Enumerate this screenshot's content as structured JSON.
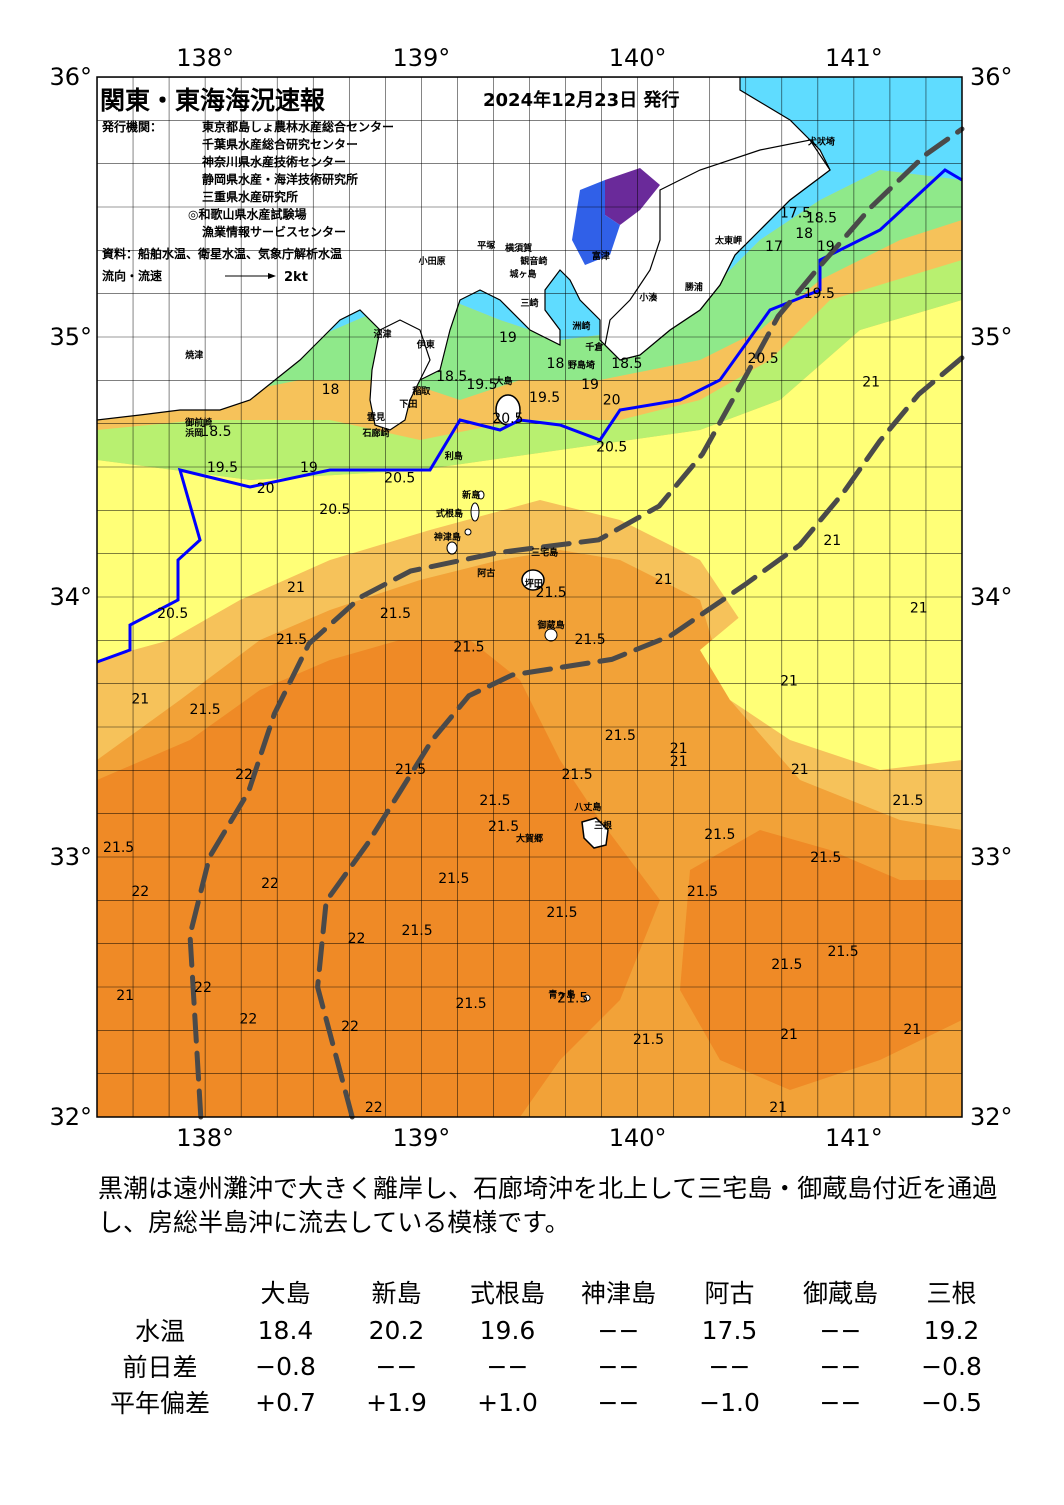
{
  "title": "関東・東海海況速報",
  "issue_date": "2024年12月23日 発行",
  "issuers_label": "発行機関：",
  "issuers": [
    "東京都島しょ農林水産総合センター",
    "千葉県水産総合研究センター",
    "神奈川県水産技術センター",
    "静岡県水産・海洋技術研究所",
    "三重県水産研究所",
    "◎和歌山県水産試験場",
    "漁業情報サービスセンター"
  ],
  "source": "資料：船舶水温、衛星水温、気象庁解析水温",
  "flow_label": "流向・流速",
  "flow_scale": "2kt",
  "axes": {
    "lon_ticks": [
      "138°",
      "139°",
      "140°",
      "141°"
    ],
    "lat_ticks": [
      "36°",
      "35°",
      "34°",
      "33°",
      "32°"
    ],
    "lon_range": [
      137.5,
      141.5
    ],
    "lat_range": [
      32,
      36
    ]
  },
  "place_names": [
    {
      "name": "犬吠埼",
      "lon": 140.85,
      "lat": 35.74
    },
    {
      "name": "太東岬",
      "lon": 140.42,
      "lat": 35.36
    },
    {
      "name": "勝浦",
      "lon": 140.26,
      "lat": 35.18
    },
    {
      "name": "小湊",
      "lon": 140.05,
      "lat": 35.14
    },
    {
      "name": "富津",
      "lon": 139.83,
      "lat": 35.3
    },
    {
      "name": "平塚",
      "lon": 139.3,
      "lat": 35.34
    },
    {
      "name": "横須賀",
      "lon": 139.45,
      "lat": 35.33
    },
    {
      "name": "小田原",
      "lon": 139.05,
      "lat": 35.28
    },
    {
      "name": "観音崎",
      "lon": 139.52,
      "lat": 35.28
    },
    {
      "name": "城ヶ島",
      "lon": 139.47,
      "lat": 35.23
    },
    {
      "name": "三崎",
      "lon": 139.5,
      "lat": 35.12
    },
    {
      "name": "洲崎",
      "lon": 139.74,
      "lat": 35.03
    },
    {
      "name": "千倉",
      "lon": 139.8,
      "lat": 34.95
    },
    {
      "name": "野島埼",
      "lon": 139.74,
      "lat": 34.88
    },
    {
      "name": "大島",
      "lon": 139.38,
      "lat": 34.82
    },
    {
      "name": "伊東",
      "lon": 139.02,
      "lat": 34.96
    },
    {
      "name": "沼津",
      "lon": 138.82,
      "lat": 35.0
    },
    {
      "name": "焼津",
      "lon": 137.95,
      "lat": 34.92
    },
    {
      "name": "御前崎",
      "lon": 137.97,
      "lat": 34.66
    },
    {
      "name": "浜岡",
      "lon": 137.95,
      "lat": 34.62
    },
    {
      "name": "稲取",
      "lon": 139.0,
      "lat": 34.78
    },
    {
      "name": "下田",
      "lon": 138.94,
      "lat": 34.73
    },
    {
      "name": "石廊崎",
      "lon": 138.79,
      "lat": 34.62
    },
    {
      "name": "雲見",
      "lon": 138.79,
      "lat": 34.68
    },
    {
      "name": "利島",
      "lon": 139.15,
      "lat": 34.53
    },
    {
      "name": "新島",
      "lon": 139.23,
      "lat": 34.38
    },
    {
      "name": "式根島",
      "lon": 139.13,
      "lat": 34.31
    },
    {
      "name": "神津島",
      "lon": 139.12,
      "lat": 34.22
    },
    {
      "name": "三宅島",
      "lon": 139.57,
      "lat": 34.16
    },
    {
      "name": "阿古",
      "lon": 139.3,
      "lat": 34.08
    },
    {
      "name": "坪田",
      "lon": 139.52,
      "lat": 34.04
    },
    {
      "name": "御蔵島",
      "lon": 139.6,
      "lat": 33.88
    },
    {
      "name": "八丈島",
      "lon": 139.77,
      "lat": 33.18
    },
    {
      "name": "三根",
      "lon": 139.84,
      "lat": 33.11
    },
    {
      "name": "大賀郷",
      "lon": 139.5,
      "lat": 33.06
    },
    {
      "name": "青ヶ島",
      "lon": 139.65,
      "lat": 32.46
    }
  ],
  "isotherm_labels": [
    {
      "text": "17.5",
      "lon": 140.73,
      "lat": 35.46
    },
    {
      "text": "18",
      "lon": 140.77,
      "lat": 35.38
    },
    {
      "text": "18.5",
      "lon": 140.85,
      "lat": 35.44
    },
    {
      "text": "19",
      "lon": 140.87,
      "lat": 35.33
    },
    {
      "text": "19.5",
      "lon": 140.84,
      "lat": 35.15
    },
    {
      "text": "17",
      "lon": 140.63,
      "lat": 35.33
    },
    {
      "text": "19",
      "lon": 139.4,
      "lat": 34.98
    },
    {
      "text": "18",
      "lon": 139.62,
      "lat": 34.88
    },
    {
      "text": "18.5",
      "lon": 139.95,
      "lat": 34.88
    },
    {
      "text": "19",
      "lon": 139.78,
      "lat": 34.8
    },
    {
      "text": "20",
      "lon": 139.88,
      "lat": 34.74
    },
    {
      "text": "20.5",
      "lon": 140.58,
      "lat": 34.9
    },
    {
      "text": "20.5",
      "lon": 139.88,
      "lat": 34.56
    },
    {
      "text": "18.5",
      "lon": 139.14,
      "lat": 34.83
    },
    {
      "text": "19.5",
      "lon": 139.28,
      "lat": 34.8
    },
    {
      "text": "20.5",
      "lon": 139.4,
      "lat": 34.67
    },
    {
      "text": "19.5",
      "lon": 139.57,
      "lat": 34.75
    },
    {
      "text": "18",
      "lon": 138.58,
      "lat": 34.78
    },
    {
      "text": "18.5",
      "lon": 138.05,
      "lat": 34.62
    },
    {
      "text": "19.5",
      "lon": 138.08,
      "lat": 34.48
    },
    {
      "text": "19",
      "lon": 138.48,
      "lat": 34.48
    },
    {
      "text": "20",
      "lon": 138.28,
      "lat": 34.4
    },
    {
      "text": "20.5",
      "lon": 138.6,
      "lat": 34.32
    },
    {
      "text": "21",
      "lon": 138.42,
      "lat": 34.02
    },
    {
      "text": "20.5",
      "lon": 137.85,
      "lat": 33.92
    },
    {
      "text": "21.5",
      "lon": 138.4,
      "lat": 33.82
    },
    {
      "text": "21.5",
      "lon": 138.88,
      "lat": 33.92
    },
    {
      "text": "21.5",
      "lon": 139.22,
      "lat": 33.79
    },
    {
      "text": "21.5",
      "lon": 139.6,
      "lat": 34.0
    },
    {
      "text": "21.5",
      "lon": 139.78,
      "lat": 33.82
    },
    {
      "text": "21",
      "lon": 140.12,
      "lat": 34.05
    },
    {
      "text": "21",
      "lon": 137.7,
      "lat": 33.59
    },
    {
      "text": "21.5",
      "lon": 138.0,
      "lat": 33.55
    },
    {
      "text": "21.5",
      "lon": 138.95,
      "lat": 33.32
    },
    {
      "text": "21.5",
      "lon": 139.92,
      "lat": 33.45
    },
    {
      "text": "21.5",
      "lon": 139.72,
      "lat": 33.3
    },
    {
      "text": "21.5",
      "lon": 139.34,
      "lat": 33.2
    },
    {
      "text": "21.5",
      "lon": 139.38,
      "lat": 33.1
    },
    {
      "text": "21",
      "lon": 140.19,
      "lat": 33.35
    },
    {
      "text": "21",
      "lon": 140.75,
      "lat": 33.32
    },
    {
      "text": "21.5",
      "lon": 141.25,
      "lat": 33.2
    },
    {
      "text": "21.5",
      "lon": 137.6,
      "lat": 33.02
    },
    {
      "text": "22",
      "lon": 138.18,
      "lat": 33.3
    },
    {
      "text": "22",
      "lon": 138.3,
      "lat": 32.88
    },
    {
      "text": "22",
      "lon": 137.7,
      "lat": 32.85
    },
    {
      "text": "21.5",
      "lon": 139.15,
      "lat": 32.9
    },
    {
      "text": "21.5",
      "lon": 140.38,
      "lat": 33.07
    },
    {
      "text": "21.5",
      "lon": 140.87,
      "lat": 32.98
    },
    {
      "text": "21.5",
      "lon": 139.65,
      "lat": 32.77
    },
    {
      "text": "21.5",
      "lon": 138.98,
      "lat": 32.7
    },
    {
      "text": "21.5",
      "lon": 140.3,
      "lat": 32.85
    },
    {
      "text": "22",
      "lon": 138.7,
      "lat": 32.67
    },
    {
      "text": "21.5",
      "lon": 140.69,
      "lat": 32.57
    },
    {
      "text": "21.5",
      "lon": 140.95,
      "lat": 32.62
    },
    {
      "text": "22",
      "lon": 137.99,
      "lat": 32.48
    },
    {
      "text": "21",
      "lon": 137.63,
      "lat": 32.45
    },
    {
      "text": "22",
      "lon": 138.2,
      "lat": 32.36
    },
    {
      "text": "21.5",
      "lon": 139.23,
      "lat": 32.42
    },
    {
      "text": "21.5",
      "lon": 139.7,
      "lat": 32.44
    },
    {
      "text": "21.5",
      "lon": 140.05,
      "lat": 32.28
    },
    {
      "text": "21",
      "lon": 140.7,
      "lat": 32.3
    },
    {
      "text": "21",
      "lon": 141.27,
      "lat": 32.32
    },
    {
      "text": "22",
      "lon": 138.67,
      "lat": 32.33
    },
    {
      "text": "22",
      "lon": 138.78,
      "lat": 32.02
    },
    {
      "text": "21",
      "lon": 140.65,
      "lat": 32.02
    },
    {
      "text": "21",
      "lon": 141.08,
      "lat": 34.81
    },
    {
      "text": "21",
      "lon": 140.9,
      "lat": 34.2
    },
    {
      "text": "21",
      "lon": 141.3,
      "lat": 33.94
    },
    {
      "text": "21",
      "lon": 140.7,
      "lat": 33.66
    },
    {
      "text": "21",
      "lon": 140.19,
      "lat": 33.4
    },
    {
      "text": "20.5",
      "lon": 138.9,
      "lat": 34.44
    }
  ],
  "kuroshio_axis_north": [
    [
      137.98,
      32.0
    ],
    [
      137.93,
      32.7
    ],
    [
      138.02,
      33.0
    ],
    [
      138.2,
      33.25
    ],
    [
      138.32,
      33.55
    ],
    [
      138.48,
      33.82
    ],
    [
      138.72,
      34.0
    ],
    [
      138.95,
      34.1
    ],
    [
      139.35,
      34.17
    ],
    [
      139.82,
      34.22
    ],
    [
      140.1,
      34.35
    ],
    [
      140.3,
      34.55
    ],
    [
      140.5,
      34.85
    ],
    [
      140.65,
      35.08
    ],
    [
      140.82,
      35.25
    ],
    [
      141.08,
      35.5
    ],
    [
      141.33,
      35.7
    ],
    [
      141.5,
      35.8
    ]
  ],
  "kuroshio_axis_south": [
    [
      138.68,
      32.0
    ],
    [
      138.52,
      32.5
    ],
    [
      138.56,
      32.83
    ],
    [
      138.75,
      33.05
    ],
    [
      138.9,
      33.25
    ],
    [
      139.05,
      33.45
    ],
    [
      139.22,
      33.62
    ],
    [
      139.42,
      33.7
    ],
    [
      139.88,
      33.76
    ],
    [
      140.15,
      33.85
    ],
    [
      140.5,
      34.05
    ],
    [
      140.75,
      34.2
    ],
    [
      140.95,
      34.4
    ],
    [
      141.12,
      34.6
    ],
    [
      141.3,
      34.78
    ],
    [
      141.5,
      34.92
    ]
  ],
  "summary_text": "黒潮は遠州灘沖で大きく離岸し、石廊埼沖を北上して三宅島・御蔵島付近を通過し、房総半島沖に流去している模様です。",
  "stats_table": {
    "columns": [
      "大島",
      "新島",
      "式根島",
      "神津島",
      "阿古",
      "御蔵島",
      "三根"
    ],
    "rows": [
      {
        "label": "水温",
        "values": [
          "18.4",
          "20.2",
          "19.6",
          "−−",
          "17.5",
          "−−",
          "19.2"
        ]
      },
      {
        "label": "前日差",
        "values": [
          "−0.8",
          "−−",
          "−−",
          "−−",
          "−−",
          "−−",
          "−0.8"
        ]
      },
      {
        "label": "平年偏差",
        "values": [
          "+0.7",
          "+1.9",
          "+1.0",
          "−−",
          "−1.0",
          "−−",
          "−0.5"
        ]
      }
    ]
  },
  "colors": {
    "land": "#ffffff",
    "cold": "#5fdcff",
    "cool": "#8fe98a",
    "mild": "#ffff77",
    "warm": "#f6c25a",
    "warmer": "#f2a238",
    "hot": "#ef8a26",
    "bay_deep": "#6a2a9a",
    "bay_blue": "#3060e8",
    "isotherm_20": "#0000ff",
    "kuroshio_axis": "#4a4a4a",
    "grid": "#000000"
  }
}
